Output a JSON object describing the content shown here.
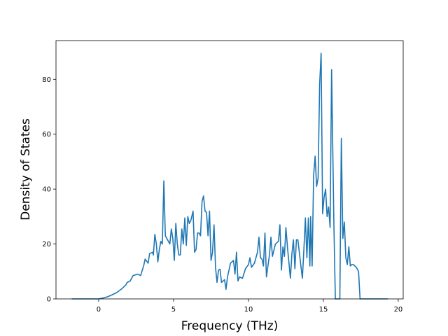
{
  "chart_data": {
    "type": "line",
    "xlabel": "Frequency (THz)",
    "ylabel": "Density of States",
    "color": "#1f77b4",
    "x": [
      -1.8,
      0,
      0.3,
      0.6,
      0.9,
      1.2,
      1.5,
      1.8,
      1.9,
      2.1,
      2.3,
      2.6,
      2.8,
      3.0,
      3.1,
      3.3,
      3.4,
      3.6,
      3.65,
      3.75,
      3.85,
      3.95,
      4.05,
      4.15,
      4.25,
      4.35,
      4.45,
      4.55,
      4.75,
      4.85,
      4.95,
      5.05,
      5.15,
      5.25,
      5.35,
      5.45,
      5.55,
      5.65,
      5.75,
      5.85,
      5.95,
      6.05,
      6.15,
      6.3,
      6.4,
      6.5,
      6.6,
      6.7,
      6.8,
      6.9,
      7.0,
      7.1,
      7.2,
      7.3,
      7.4,
      7.5,
      7.6,
      7.7,
      7.8,
      7.9,
      8.0,
      8.1,
      8.2,
      8.4,
      8.5,
      8.6,
      8.8,
      9.0,
      9.1,
      9.2,
      9.3,
      9.4,
      9.6,
      9.8,
      10.0,
      10.1,
      10.2,
      10.4,
      10.6,
      10.7,
      10.8,
      10.9,
      11.0,
      11.1,
      11.2,
      11.4,
      11.5,
      11.6,
      11.8,
      12.0,
      12.1,
      12.2,
      12.3,
      12.4,
      12.5,
      12.6,
      12.8,
      12.9,
      13.0,
      13.1,
      13.2,
      13.3,
      13.5,
      13.6,
      13.7,
      13.8,
      13.9,
      14.0,
      14.1,
      14.15,
      14.25,
      14.35,
      14.45,
      14.55,
      14.65,
      14.75,
      14.85,
      14.95,
      15.05,
      15.15,
      15.25,
      15.35,
      15.45,
      15.55,
      15.7,
      15.8,
      16.1,
      16.2,
      16.3,
      16.4,
      16.5,
      16.6,
      16.7,
      16.8,
      16.9,
      17.0,
      17.2,
      17.35,
      17.45,
      19.3
    ],
    "values": [
      0,
      0,
      0.3,
      0.8,
      1.5,
      2.3,
      3.5,
      5,
      6,
      6.5,
      8.5,
      9,
      8.5,
      12,
      14.5,
      13,
      16.5,
      17,
      16,
      23.5,
      20,
      13.5,
      18,
      21,
      20,
      43,
      23,
      22,
      20,
      25.5,
      22,
      14,
      27.5,
      20,
      16,
      16,
      25.5,
      20,
      29.5,
      19.5,
      30,
      27.5,
      28.5,
      32,
      17,
      18,
      24,
      24,
      23,
      35.5,
      37.5,
      32,
      31.5,
      23,
      32,
      14,
      17,
      27,
      11.5,
      6,
      10.5,
      10.8,
      6,
      7,
      3.5,
      8,
      13,
      14,
      9,
      17,
      6.5,
      8,
      7.5,
      11,
      12.5,
      15,
      11.5,
      13,
      17,
      22.5,
      15,
      14.5,
      12,
      24,
      8,
      16,
      22.5,
      15.5,
      20,
      21,
      27,
      10.5,
      19,
      15.5,
      26,
      19,
      7.5,
      16.5,
      21.5,
      11,
      21.5,
      21.5,
      12,
      7.5,
      18,
      29.5,
      15,
      29.5,
      12,
      30,
      12,
      45,
      52,
      41,
      44,
      78,
      89.5,
      31,
      37,
      40,
      30,
      33.5,
      26,
      83.5,
      28,
      0,
      0,
      58.5,
      22,
      28,
      15,
      12.5,
      19,
      12,
      12.5,
      12.5,
      11.5,
      10,
      0,
      0
    ],
    "xlim": [
      -2.85,
      20.33
    ],
    "ylim": [
      0,
      94.1
    ],
    "xticks": [
      0,
      5,
      10,
      15,
      20
    ],
    "yticks": [
      0,
      20,
      40,
      60,
      80
    ]
  }
}
